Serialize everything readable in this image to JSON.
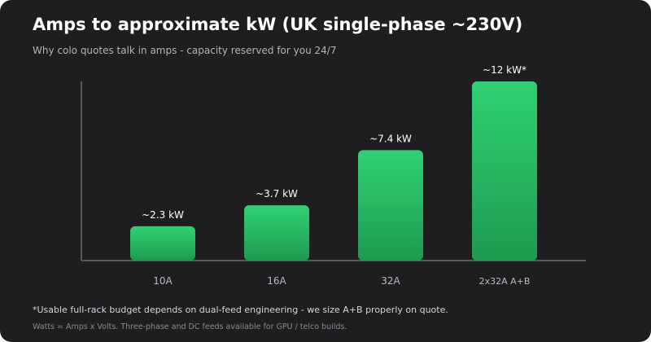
{
  "title": "Amps to approximate kW (UK single-phase ~230V)",
  "subtitle": "Why colo quotes talk in amps - capacity reserved for you 24/7",
  "footnote": "*Usable full-rack budget depends on dual-feed engineering - we size A+B properly on quote.",
  "footnote2": "Watts = Amps x Volts. Three-phase and DC feeds available for GPU / telco builds.",
  "colors": {
    "background": "#1e1e20",
    "bar_top": "#2fd174",
    "bar_bottom": "#1f9a50",
    "axis": "#6b6b70"
  },
  "chart_data": {
    "type": "bar",
    "categories": [
      "10A",
      "16A",
      "32A",
      "2x32A A+B"
    ],
    "values": [
      2.3,
      3.7,
      7.4,
      12
    ],
    "data_labels": [
      "~2.3 kW",
      "~3.7 kW",
      "~7.4 kW",
      "~12 kW*"
    ],
    "ylim": [
      0,
      14
    ],
    "xlabel": "",
    "ylabel": "",
    "grid": false,
    "legend": "none"
  }
}
